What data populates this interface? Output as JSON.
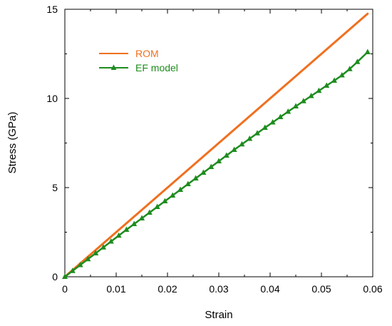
{
  "chart_data": {
    "type": "line",
    "title": "",
    "xlabel": "Strain",
    "ylabel": "Stress (GPa)",
    "xlim": [
      0,
      0.06
    ],
    "ylim": [
      0,
      15
    ],
    "x_ticks": [
      0,
      0.01,
      0.02,
      0.03,
      0.04,
      0.05,
      0.06
    ],
    "x_tick_labels": [
      "0",
      "0.01",
      "0.02",
      "0.03",
      "0.04",
      "0.05",
      "0.06"
    ],
    "y_ticks": [
      0,
      5,
      10,
      15
    ],
    "y_tick_labels": [
      "0",
      "5",
      "10",
      "15"
    ],
    "grid": false,
    "legend_position": "top-left",
    "series": [
      {
        "name": "ROM",
        "color": "#F07020",
        "marker": "none",
        "x": [
          0,
          0.059
        ],
        "y": [
          0,
          14.75
        ]
      },
      {
        "name": "EF model",
        "color": "#1E8C1E",
        "marker": "triangle",
        "x": [
          0,
          0.0015,
          0.003,
          0.0045,
          0.006,
          0.0075,
          0.009,
          0.0105,
          0.012,
          0.0135,
          0.015,
          0.0165,
          0.018,
          0.0195,
          0.021,
          0.0225,
          0.024,
          0.0255,
          0.027,
          0.0285,
          0.03,
          0.0315,
          0.033,
          0.0345,
          0.036,
          0.0375,
          0.039,
          0.0405,
          0.042,
          0.0435,
          0.045,
          0.0465,
          0.048,
          0.0495,
          0.051,
          0.0525,
          0.054,
          0.0555,
          0.057,
          0.059
        ],
        "y": [
          0,
          0.33,
          0.66,
          0.99,
          1.32,
          1.65,
          1.98,
          2.31,
          2.64,
          2.96,
          3.28,
          3.6,
          3.92,
          4.24,
          4.56,
          4.88,
          5.2,
          5.52,
          5.84,
          6.16,
          6.48,
          6.8,
          7.12,
          7.43,
          7.74,
          8.05,
          8.36,
          8.66,
          8.96,
          9.26,
          9.56,
          9.85,
          10.14,
          10.43,
          10.72,
          11.0,
          11.3,
          11.65,
          12.05,
          12.6
        ]
      }
    ]
  }
}
